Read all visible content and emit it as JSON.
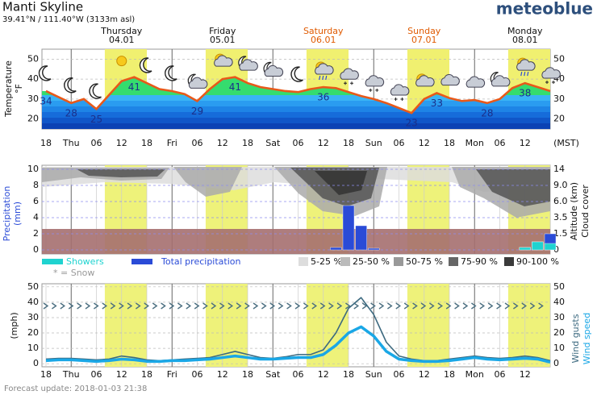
{
  "header": {
    "title": "Manti Skyline",
    "coords": "39.41°N / 111.40°W (3133m asl)",
    "logo": "meteoblue"
  },
  "days": [
    {
      "name": "Thursday",
      "date": "04.01",
      "weekend": false
    },
    {
      "name": "Friday",
      "date": "05.01",
      "weekend": false
    },
    {
      "name": "Saturday",
      "date": "06.01",
      "weekend": true
    },
    {
      "name": "Sunday",
      "date": "07.01",
      "weekend": true
    },
    {
      "name": "Monday",
      "date": "08.01",
      "weekend": false
    }
  ],
  "time_axis": {
    "labels": [
      "18",
      "Thu",
      "06",
      "12",
      "18",
      "Fri",
      "06",
      "12",
      "18",
      "Sat",
      "06",
      "12",
      "18",
      "Sun",
      "06",
      "12",
      "18",
      "Mon",
      "06",
      "12"
    ],
    "zone": "(MST)"
  },
  "footer": "Forecast update: 2018-01-03 21:38",
  "chart_data": [
    {
      "type": "line",
      "ylabel": "Temperature",
      "yunit": "°F",
      "ylim": [
        15,
        55
      ],
      "yticks": [
        20,
        30,
        40,
        50
      ],
      "color": "#e8591a",
      "values": [
        34,
        31,
        28,
        30,
        25,
        32,
        39,
        41,
        38,
        35,
        34,
        32.5,
        29,
        35,
        40,
        41,
        38,
        36,
        35,
        34,
        33.5,
        35,
        36,
        35.5,
        33.5,
        31.5,
        30,
        28,
        25.5,
        23,
        30,
        33,
        30.5,
        29,
        29.5,
        28,
        30,
        35.5,
        38,
        36,
        34
      ],
      "value_labels": [
        "34",
        null,
        "28",
        null,
        "25",
        null,
        null,
        "41",
        null,
        null,
        null,
        null,
        "29",
        null,
        null,
        "41",
        null,
        null,
        null,
        null,
        null,
        null,
        "36",
        null,
        null,
        null,
        null,
        null,
        null,
        "23",
        null,
        "33",
        null,
        null,
        null,
        "28",
        null,
        null,
        "38",
        null,
        null
      ]
    },
    {
      "type": "bar",
      "ylabel": "Precipitation",
      "yunit": "(mm)",
      "y2label": "Altitude (km)",
      "y2label2": "Cloud cover",
      "ylim": [
        -0.5,
        10.5
      ],
      "yticks": [
        0,
        2,
        4,
        6,
        8,
        10
      ],
      "y2ticks": [
        0,
        1.5,
        3.5,
        {
          "value": 6,
          "label": "6.0"
        },
        {
          "value": 9,
          "label": "9.0"
        },
        14
      ],
      "series": [
        {
          "name": "Total precipitation",
          "color": "#2a4bd7",
          "values": [
            0,
            0,
            0,
            0,
            0,
            0,
            0,
            0,
            0,
            0,
            0,
            0,
            0,
            0,
            0,
            0,
            0,
            0,
            0,
            0,
            0,
            0,
            0,
            0.3,
            5.5,
            3.0,
            0.2,
            0,
            0,
            0,
            0,
            0,
            0,
            0,
            0,
            0,
            0,
            0,
            0.3,
            1.0,
            2.0
          ]
        },
        {
          "name": "Showers",
          "color": "#1fd3d0",
          "values": [
            0,
            0,
            0,
            0,
            0,
            0,
            0,
            0,
            0,
            0,
            0,
            0,
            0,
            0,
            0,
            0,
            0,
            0,
            0,
            0,
            0,
            0,
            0,
            0,
            0,
            0,
            0,
            0,
            0,
            0,
            0,
            0,
            0,
            0,
            0,
            0,
            0,
            0,
            0.3,
            1.0,
            0.8
          ]
        }
      ],
      "snow_note": "* = Snow",
      "cloud_legend": [
        {
          "label": "5-25 %",
          "color": "#dddddd"
        },
        {
          "label": "25-50 %",
          "color": "#bbbbbb"
        },
        {
          "label": "50-75 %",
          "color": "#999999"
        },
        {
          "label": "75-90 %",
          "color": "#666666"
        },
        {
          "label": "90-100 %",
          "color": "#3a3a3a"
        }
      ]
    },
    {
      "type": "line",
      "ylabel": "(mph)",
      "ylim": [
        -2,
        52
      ],
      "yticks": [
        0,
        10,
        20,
        30,
        40,
        50
      ],
      "series": [
        {
          "name": "Wind gusts",
          "color": "#3d6a80",
          "values": [
            3,
            3.5,
            3.5,
            3,
            2.5,
            3,
            5,
            4,
            2.5,
            2,
            2.5,
            3,
            3.5,
            4,
            6,
            8,
            6,
            4,
            3.5,
            4.5,
            6,
            6,
            9,
            20,
            36,
            43,
            32,
            14,
            5,
            3,
            2,
            2,
            3,
            4,
            5,
            4,
            3.5,
            4,
            5,
            4,
            2
          ]
        },
        {
          "name": "Wind speed",
          "color": "#1aa7e6",
          "values": [
            2,
            2.5,
            2.5,
            2,
            1.5,
            2,
            3,
            2.5,
            1.5,
            1.5,
            2,
            2,
            2.5,
            3,
            4,
            5,
            4,
            3,
            3,
            3.5,
            4,
            4,
            6,
            12,
            20,
            24,
            18,
            8,
            3,
            2,
            1.5,
            1.5,
            2,
            3,
            4,
            3,
            2.5,
            3,
            3.5,
            3,
            1
          ]
        }
      ]
    }
  ]
}
